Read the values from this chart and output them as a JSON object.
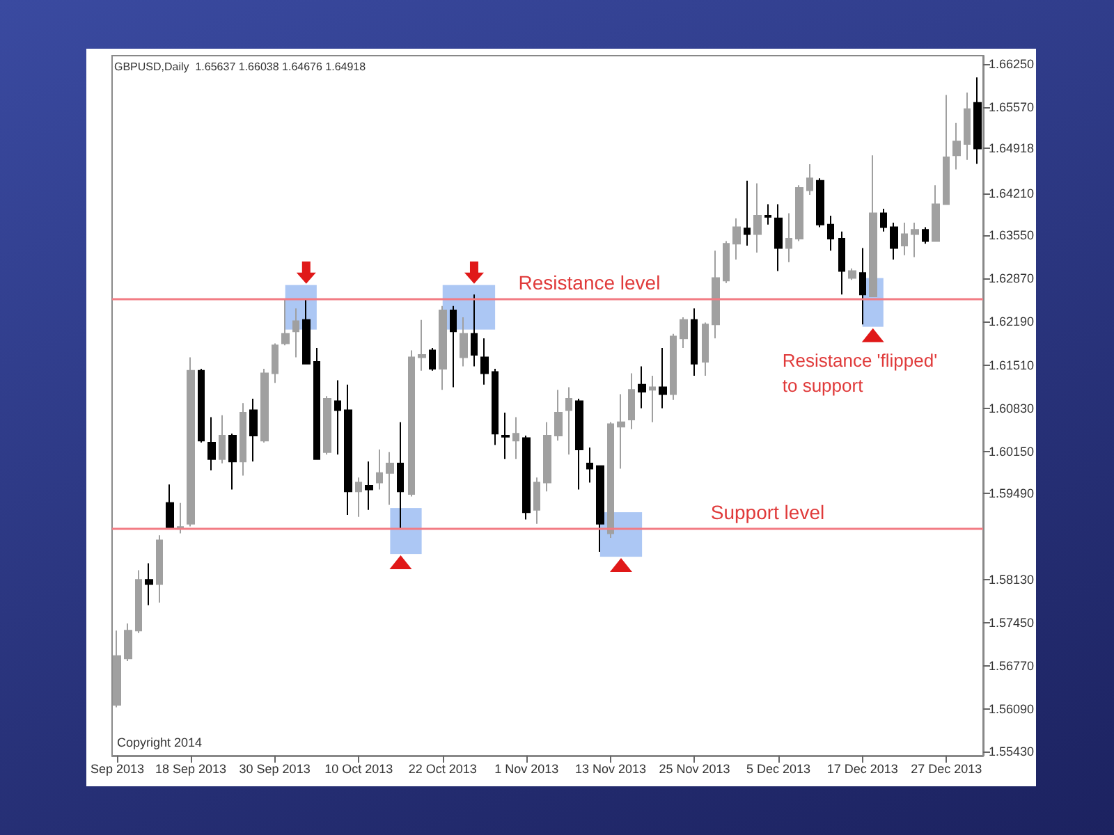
{
  "chart_data": {
    "type": "candlestick",
    "title": "GBPUSD,Daily  1.65637 1.66038 1.64676 1.64918",
    "colors": [
      "#a0a0a0",
      "#a0a0a0",
      "#a0a0a0",
      "#000000",
      "#a0a0a0",
      "#000000",
      "#a0a0a0",
      "#a0a0a0",
      "#000000",
      "#000000",
      "#a0a0a0",
      "#000000",
      "#a0a0a0",
      "#000000",
      "#a0a0a0",
      "#a0a0a0",
      "#a0a0a0",
      "#a0a0a0",
      "#000000",
      "#000000",
      "#a0a0a0",
      "#000000",
      "#000000",
      "#a0a0a0",
      "#000000",
      "#a0a0a0",
      "#a0a0a0",
      "#000000",
      "#a0a0a0",
      "#a0a0a0",
      "#000000",
      "#a0a0a0",
      "#000000",
      "#a0a0a0",
      "#000000",
      "#000000",
      "#000000",
      "#000000",
      "#a0a0a0",
      "#000000",
      "#a0a0a0",
      "#a0a0a0",
      "#a0a0a0",
      "#a0a0a0",
      "#000000",
      "#000000",
      "#000000",
      "#a0a0a0",
      "#a0a0a0",
      "#a0a0a0",
      "#000000",
      "#a0a0a0",
      "#000000",
      "#a0a0a0",
      "#a0a0a0",
      "#000000",
      "#a0a0a0",
      "#a0a0a0",
      "#a0a0a0",
      "#a0a0a0",
      "#000000",
      "#a0a0a0",
      "#000000",
      "#000000",
      "#a0a0a0",
      "#a0a0a0",
      "#a0a0a0",
      "#000000",
      "#000000",
      "#000000",
      "#a0a0a0",
      "#000000",
      "#a0a0a0",
      "#000000",
      "#000000",
      "#a0a0a0",
      "#a0a0a0",
      "#000000",
      "#a0a0a0",
      "#a0a0a0",
      "#a0a0a0",
      "#a0a0a0",
      "#000000"
    ],
    "categories": [
      "Sep 2013",
      null,
      null,
      null,
      null,
      null,
      null,
      "18 Sep 2013",
      null,
      null,
      null,
      null,
      null,
      null,
      null,
      "30 Sep 2013",
      null,
      null,
      null,
      null,
      null,
      null,
      null,
      "10 Oct 2013",
      null,
      null,
      null,
      null,
      null,
      null,
      null,
      "22 Oct 2013",
      null,
      null,
      null,
      null,
      null,
      null,
      null,
      "1 Nov 2013",
      null,
      null,
      null,
      null,
      null,
      null,
      null,
      "13 Nov 2013",
      null,
      null,
      null,
      null,
      null,
      null,
      null,
      "25 Nov 2013",
      null,
      null,
      null,
      null,
      null,
      null,
      null,
      "5 Dec 2013",
      null,
      null,
      null,
      null,
      null,
      null,
      null,
      "17 Dec 2013",
      null,
      null,
      null,
      null,
      null,
      null,
      null,
      "27 Dec 2013",
      null,
      null,
      null
    ],
    "ohlc": [
      [
        1.5616,
        1.5733,
        1.5612,
        1.5693
      ],
      [
        1.5689,
        1.5744,
        1.5685,
        1.5733
      ],
      [
        1.5733,
        1.5828,
        1.5729,
        1.5813
      ],
      [
        1.5813,
        1.5839,
        1.5773,
        1.5806
      ],
      [
        1.5806,
        1.5883,
        1.5777,
        1.5875
      ],
      [
        1.5934,
        1.5963,
        1.5893,
        1.5893
      ],
      [
        1.5893,
        1.5934,
        1.5886,
        1.5896
      ],
      [
        1.5901,
        1.6163,
        1.5897,
        1.6142
      ],
      [
        1.6142,
        1.6145,
        1.6029,
        1.6032
      ],
      [
        1.6029,
        1.6069,
        1.5985,
        1.6003
      ],
      [
        1.6003,
        1.6072,
        1.5996,
        1.604
      ],
      [
        1.604,
        1.6043,
        1.5955,
        1.5999
      ],
      [
        1.5999,
        1.6091,
        1.5977,
        1.6076
      ],
      [
        1.608,
        1.6098,
        1.5999,
        1.604
      ],
      [
        1.6032,
        1.6145,
        1.6029,
        1.6138
      ],
      [
        1.6138,
        1.6185,
        1.6123,
        1.6182
      ],
      [
        1.6185,
        1.6255,
        1.6182,
        1.62
      ],
      [
        1.6204,
        1.624,
        1.6163,
        1.622
      ],
      [
        1.6222,
        1.6255,
        1.6153,
        1.6153
      ],
      [
        1.6156,
        1.6178,
        1.6003,
        1.6003
      ],
      [
        1.6014,
        1.6102,
        1.601,
        1.6098
      ],
      [
        1.6094,
        1.6127,
        1.601,
        1.608
      ],
      [
        1.608,
        1.612,
        1.5915,
        1.5952
      ],
      [
        1.5952,
        1.5974,
        1.5912,
        1.5966
      ],
      [
        1.5961,
        1.5999,
        1.5923,
        1.5955
      ],
      [
        1.5966,
        1.6018,
        1.5955,
        1.5981
      ],
      [
        1.5981,
        1.6014,
        1.5931,
        1.5996
      ],
      [
        1.5996,
        1.6061,
        1.5893,
        1.5952
      ],
      [
        1.5948,
        1.6174,
        1.5944,
        1.6163
      ],
      [
        1.6163,
        1.6222,
        1.6142,
        1.6167
      ],
      [
        1.6174,
        1.6178,
        1.6142,
        1.6145
      ],
      [
        1.6145,
        1.6244,
        1.6112,
        1.6237
      ],
      [
        1.6237,
        1.6244,
        1.6116,
        1.6204
      ],
      [
        1.6163,
        1.6226,
        1.6149,
        1.62
      ],
      [
        1.62,
        1.6262,
        1.6149,
        1.6167
      ],
      [
        1.6163,
        1.6193,
        1.612,
        1.6138
      ],
      [
        1.614,
        1.6145,
        1.6025,
        1.6043
      ],
      [
        1.604,
        1.6076,
        1.6003,
        1.6038
      ],
      [
        1.6032,
        1.6069,
        1.6003,
        1.6043
      ],
      [
        1.6036,
        1.604,
        1.5908,
        1.5919
      ],
      [
        1.5923,
        1.5974,
        1.5901,
        1.5966
      ],
      [
        1.5966,
        1.6061,
        1.5952,
        1.604
      ],
      [
        1.604,
        1.6112,
        1.6032,
        1.6076
      ],
      [
        1.608,
        1.6116,
        1.601,
        1.6098
      ],
      [
        1.6094,
        1.6098,
        1.5955,
        1.6018
      ],
      [
        1.5996,
        1.6021,
        1.5966,
        1.5988
      ],
      [
        1.5992,
        1.5992,
        1.5857,
        1.5901
      ],
      [
        1.5886,
        1.6061,
        1.5879,
        1.6058
      ],
      [
        1.6054,
        1.6105,
        1.5988,
        1.6061
      ],
      [
        1.6065,
        1.6138,
        1.605,
        1.6112
      ],
      [
        1.612,
        1.6149,
        1.6083,
        1.6109
      ],
      [
        1.6112,
        1.6134,
        1.6061,
        1.6116
      ],
      [
        1.6116,
        1.6178,
        1.6083,
        1.6105
      ],
      [
        1.6105,
        1.62,
        1.6096,
        1.6196
      ],
      [
        1.6193,
        1.6226,
        1.6178,
        1.6222
      ],
      [
        1.6222,
        1.624,
        1.6134,
        1.6153
      ],
      [
        1.6156,
        1.6218,
        1.6134,
        1.6215
      ],
      [
        1.6215,
        1.6331,
        1.6193,
        1.6288
      ],
      [
        1.6284,
        1.6346,
        1.628,
        1.6342
      ],
      [
        1.6342,
        1.6382,
        1.6317,
        1.6368
      ],
      [
        1.6366,
        1.6441,
        1.6339,
        1.6357
      ],
      [
        1.6357,
        1.6437,
        1.6328,
        1.6386
      ],
      [
        1.6386,
        1.6404,
        1.6372,
        1.6384
      ],
      [
        1.6382,
        1.6404,
        1.6299,
        1.6335
      ],
      [
        1.6335,
        1.639,
        1.6313,
        1.635
      ],
      [
        1.635,
        1.6434,
        1.6346,
        1.643
      ],
      [
        1.6426,
        1.6467,
        1.6419,
        1.6445
      ],
      [
        1.6441,
        1.6445,
        1.6368,
        1.6372
      ],
      [
        1.6372,
        1.6386,
        1.6331,
        1.635
      ],
      [
        1.635,
        1.6361,
        1.6262,
        1.6299
      ],
      [
        1.6288,
        1.6303,
        1.6285,
        1.6299
      ],
      [
        1.6296,
        1.6335,
        1.6215,
        1.6262
      ],
      [
        1.6259,
        1.6481,
        1.6259,
        1.639
      ],
      [
        1.639,
        1.6397,
        1.6361,
        1.6368
      ],
      [
        1.6368,
        1.6375,
        1.6317,
        1.6335
      ],
      [
        1.6339,
        1.6375,
        1.6324,
        1.6357
      ],
      [
        1.6357,
        1.6375,
        1.6321,
        1.6364
      ],
      [
        1.6364,
        1.6368,
        1.6342,
        1.6346
      ],
      [
        1.6346,
        1.6434,
        1.6346,
        1.6404
      ],
      [
        1.6404,
        1.6576,
        1.6404,
        1.6478
      ],
      [
        1.6481,
        1.6532,
        1.6459,
        1.6503
      ],
      [
        1.6499,
        1.658,
        1.6474,
        1.6554
      ],
      [
        1.65637,
        1.66038,
        1.64676,
        1.64918
      ]
    ],
    "ylim": [
      1.5536,
      1.6638
    ],
    "yticks": [
      {
        "value": 1.5543,
        "label": "1.55430"
      },
      {
        "value": 1.5609,
        "label": "1.56090"
      },
      {
        "value": 1.5677,
        "label": "1.56770"
      },
      {
        "value": 1.5745,
        "label": "1.57450"
      },
      {
        "value": 1.5813,
        "label": "1.58130"
      },
      {
        "value": 1.5949,
        "label": "1.59490"
      },
      {
        "value": 1.6015,
        "label": "1.60150"
      },
      {
        "value": 1.6083,
        "label": "1.60830"
      },
      {
        "value": 1.6151,
        "label": "1.61510"
      },
      {
        "value": 1.6219,
        "label": "1.62190"
      },
      {
        "value": 1.6287,
        "label": "1.62870"
      },
      {
        "value": 1.6355,
        "label": "1.63550"
      },
      {
        "value": 1.6421,
        "label": "1.64210"
      },
      {
        "value": 1.64918,
        "label": "1.64918"
      },
      {
        "value": 1.6557,
        "label": "1.65570"
      },
      {
        "value": 1.6625,
        "label": "1.66250"
      }
    ],
    "ref_lines": [
      {
        "axis": "y",
        "value": 1.6255,
        "label": "Resistance level",
        "color": "#f27c84"
      },
      {
        "axis": "y",
        "value": 1.5893,
        "label": "Support level",
        "color": "#f27c84"
      }
    ],
    "annotations": [
      "Resistance 'flipped' to support",
      "Copyright 2014"
    ],
    "grid": false
  }
}
